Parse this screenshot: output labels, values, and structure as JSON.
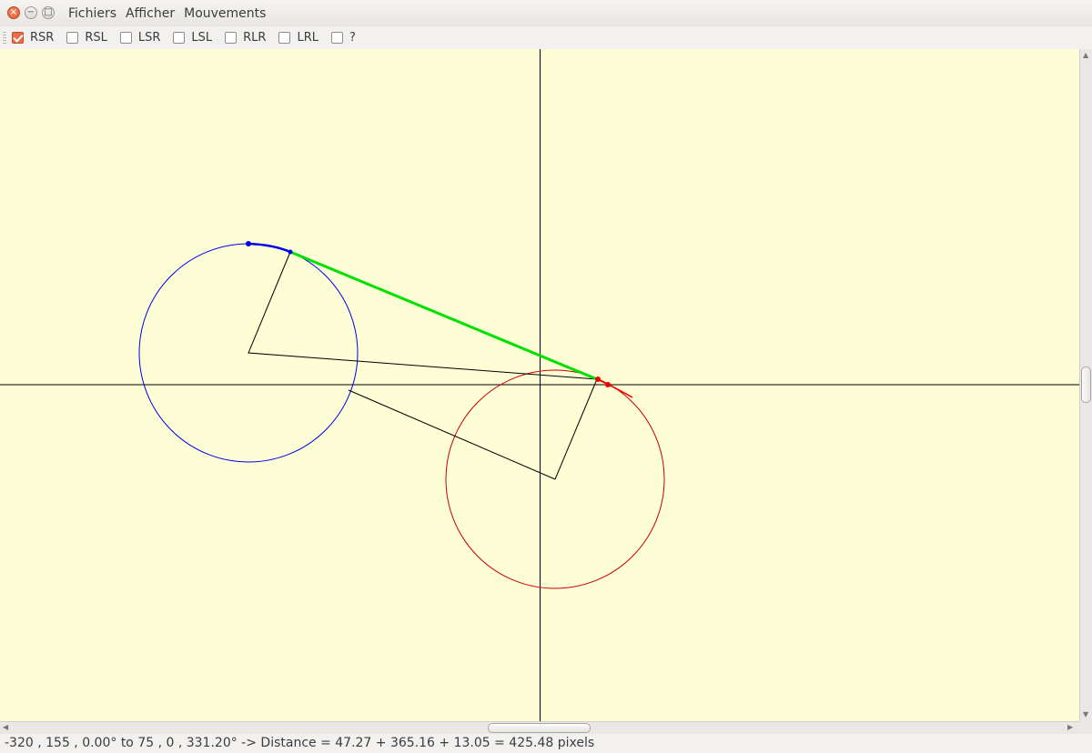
{
  "window": {
    "close_glyph": "×",
    "minimize_glyph": "−",
    "maximize_glyph": "□"
  },
  "menubar": {
    "items": [
      "Fichiers",
      "Afficher",
      "Mouvements"
    ]
  },
  "toolbar": {
    "options": [
      {
        "label": "RSR",
        "checked": true
      },
      {
        "label": "RSL",
        "checked": false
      },
      {
        "label": "LSR",
        "checked": false
      },
      {
        "label": "LSL",
        "checked": false
      },
      {
        "label": "RLR",
        "checked": false
      },
      {
        "label": "LRL",
        "checked": false
      },
      {
        "label": "?",
        "checked": false
      }
    ]
  },
  "colors": {
    "canvas_bg": "#fdfdd6",
    "start_circle": "#0000ff",
    "end_circle": "#cc0000",
    "tangent": "#00e000",
    "axes": "#000000"
  },
  "status": {
    "text": "-320 , 155 , 0.00° to 75 , 0 , 331.20° -> Distance = 47.27 + 365.16 + 13.05 = 425.48 pixels"
  }
}
